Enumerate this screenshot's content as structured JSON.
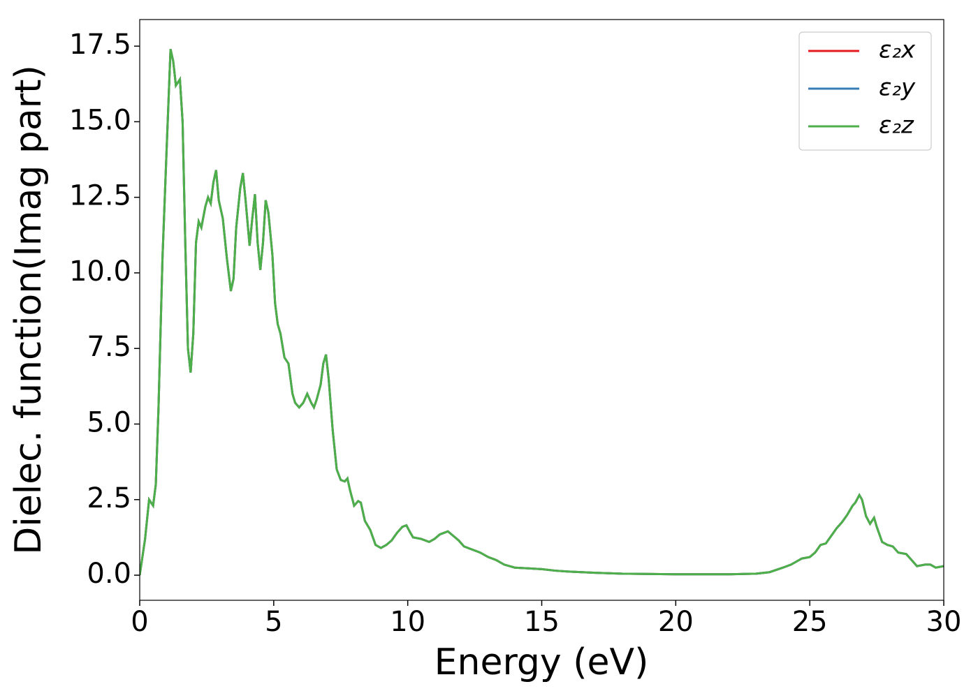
{
  "chart_data": {
    "type": "line",
    "xlabel": "Energy (eV)",
    "ylabel": "Dielec. function(Imag part)",
    "xlim": [
      0,
      30
    ],
    "ylim": [
      -0.83,
      18.38
    ],
    "xticks": [
      0,
      5,
      10,
      15,
      20,
      25,
      30
    ],
    "yticks": [
      {
        "value": 0,
        "label": "0.0"
      },
      2.5,
      {
        "value": 5,
        "label": "5.0"
      },
      7.5,
      {
        "value": 10,
        "label": "10.0"
      },
      12.5,
      {
        "value": 15,
        "label": "15.0"
      },
      17.5
    ],
    "legend": "upper right",
    "x": [
      0,
      0.2,
      0.35,
      0.5,
      0.6,
      0.7,
      0.85,
      1.0,
      1.15,
      1.25,
      1.35,
      1.5,
      1.6,
      1.7,
      1.8,
      1.9,
      2.0,
      2.1,
      2.2,
      2.3,
      2.45,
      2.55,
      2.65,
      2.75,
      2.85,
      2.95,
      3.1,
      3.25,
      3.4,
      3.5,
      3.6,
      3.75,
      3.85,
      3.95,
      4.1,
      4.2,
      4.3,
      4.4,
      4.5,
      4.6,
      4.7,
      4.8,
      4.95,
      5.05,
      5.15,
      5.25,
      5.4,
      5.55,
      5.7,
      5.8,
      5.95,
      6.1,
      6.25,
      6.4,
      6.5,
      6.6,
      6.75,
      6.85,
      6.95,
      7.05,
      7.2,
      7.35,
      7.5,
      7.65,
      7.75,
      7.85,
      8.0,
      8.15,
      8.25,
      8.4,
      8.6,
      8.8,
      9.0,
      9.2,
      9.4,
      9.6,
      9.8,
      9.95,
      10.1,
      10.2,
      10.5,
      10.8,
      11.0,
      11.2,
      11.5,
      11.7,
      11.9,
      12.1,
      12.4,
      12.7,
      13.0,
      13.3,
      13.6,
      14.0,
      15.0,
      15.5,
      16.0,
      17.0,
      18.0,
      20.0,
      22.0,
      23.0,
      23.5,
      24.0,
      24.3,
      24.7,
      25.0,
      25.2,
      25.4,
      25.6,
      25.8,
      26.0,
      26.2,
      26.4,
      26.6,
      26.7,
      26.85,
      26.95,
      27.1,
      27.25,
      27.4,
      27.5,
      27.7,
      27.9,
      28.1,
      28.3,
      28.6,
      28.8,
      29.0,
      29.3,
      29.5,
      29.7,
      30.0
    ],
    "series": [
      {
        "name": "ε₂x",
        "color": "#e41a1c",
        "values": [
          0,
          1.2,
          2.5,
          2.3,
          3.0,
          5.5,
          10.5,
          14.0,
          17.4,
          17.0,
          16.2,
          16.4,
          15.0,
          11.0,
          7.5,
          6.7,
          8.0,
          11.0,
          11.7,
          11.5,
          12.2,
          12.5,
          12.3,
          13.0,
          13.4,
          12.4,
          11.8,
          10.5,
          9.4,
          9.8,
          11.5,
          12.8,
          13.3,
          12.4,
          10.9,
          11.8,
          12.6,
          11.0,
          10.1,
          11.0,
          12.4,
          12.0,
          10.6,
          9.0,
          8.3,
          8.0,
          7.2,
          7.0,
          6.0,
          5.7,
          5.55,
          5.7,
          6.0,
          5.7,
          5.55,
          5.8,
          6.3,
          7.0,
          7.3,
          6.5,
          4.8,
          3.5,
          3.15,
          3.1,
          3.2,
          2.8,
          2.3,
          2.45,
          2.4,
          1.8,
          1.5,
          1.0,
          0.9,
          1.0,
          1.15,
          1.4,
          1.6,
          1.65,
          1.4,
          1.25,
          1.2,
          1.1,
          1.2,
          1.35,
          1.45,
          1.3,
          1.15,
          0.95,
          0.85,
          0.75,
          0.6,
          0.5,
          0.35,
          0.25,
          0.2,
          0.15,
          0.12,
          0.08,
          0.05,
          0.03,
          0.03,
          0.05,
          0.1,
          0.25,
          0.35,
          0.55,
          0.6,
          0.75,
          1.0,
          1.05,
          1.3,
          1.55,
          1.75,
          2.0,
          2.3,
          2.4,
          2.65,
          2.5,
          1.95,
          1.7,
          1.9,
          1.6,
          1.1,
          1.0,
          0.95,
          0.75,
          0.7,
          0.5,
          0.3,
          0.35,
          0.35,
          0.25,
          0.3
        ]
      },
      {
        "name": "ε₂y",
        "color": "#377eb8",
        "values": [
          0,
          1.2,
          2.5,
          2.3,
          3.0,
          5.5,
          10.5,
          14.0,
          17.4,
          17.0,
          16.2,
          16.4,
          15.0,
          11.0,
          7.5,
          6.7,
          8.0,
          11.0,
          11.7,
          11.5,
          12.2,
          12.5,
          12.3,
          13.0,
          13.4,
          12.4,
          11.8,
          10.5,
          9.4,
          9.8,
          11.5,
          12.8,
          13.3,
          12.4,
          10.9,
          11.8,
          12.6,
          11.0,
          10.1,
          11.0,
          12.4,
          12.0,
          10.6,
          9.0,
          8.3,
          8.0,
          7.2,
          7.0,
          6.0,
          5.7,
          5.55,
          5.7,
          6.0,
          5.7,
          5.55,
          5.8,
          6.3,
          7.0,
          7.3,
          6.5,
          4.8,
          3.5,
          3.15,
          3.1,
          3.2,
          2.8,
          2.3,
          2.45,
          2.4,
          1.8,
          1.5,
          1.0,
          0.9,
          1.0,
          1.15,
          1.4,
          1.6,
          1.65,
          1.4,
          1.25,
          1.2,
          1.1,
          1.2,
          1.35,
          1.45,
          1.3,
          1.15,
          0.95,
          0.85,
          0.75,
          0.6,
          0.5,
          0.35,
          0.25,
          0.2,
          0.15,
          0.12,
          0.08,
          0.05,
          0.03,
          0.03,
          0.05,
          0.1,
          0.25,
          0.35,
          0.55,
          0.6,
          0.75,
          1.0,
          1.05,
          1.3,
          1.55,
          1.75,
          2.0,
          2.3,
          2.4,
          2.65,
          2.5,
          1.95,
          1.7,
          1.9,
          1.6,
          1.1,
          1.0,
          0.95,
          0.75,
          0.7,
          0.5,
          0.3,
          0.35,
          0.35,
          0.25,
          0.3
        ]
      },
      {
        "name": "ε₂z",
        "color": "#4daf4a",
        "values": [
          0,
          1.2,
          2.5,
          2.3,
          3.0,
          5.5,
          10.5,
          14.0,
          17.4,
          17.0,
          16.2,
          16.4,
          15.0,
          11.0,
          7.5,
          6.7,
          8.0,
          11.0,
          11.7,
          11.5,
          12.2,
          12.5,
          12.3,
          13.0,
          13.4,
          12.4,
          11.8,
          10.5,
          9.4,
          9.8,
          11.5,
          12.8,
          13.3,
          12.4,
          10.9,
          11.8,
          12.6,
          11.0,
          10.1,
          11.0,
          12.4,
          12.0,
          10.6,
          9.0,
          8.3,
          8.0,
          7.2,
          7.0,
          6.0,
          5.7,
          5.55,
          5.7,
          6.0,
          5.7,
          5.55,
          5.8,
          6.3,
          7.0,
          7.3,
          6.5,
          4.8,
          3.5,
          3.15,
          3.1,
          3.2,
          2.8,
          2.3,
          2.45,
          2.4,
          1.8,
          1.5,
          1.0,
          0.9,
          1.0,
          1.15,
          1.4,
          1.6,
          1.65,
          1.4,
          1.25,
          1.2,
          1.1,
          1.2,
          1.35,
          1.45,
          1.3,
          1.15,
          0.95,
          0.85,
          0.75,
          0.6,
          0.5,
          0.35,
          0.25,
          0.2,
          0.15,
          0.12,
          0.08,
          0.05,
          0.03,
          0.03,
          0.05,
          0.1,
          0.25,
          0.35,
          0.55,
          0.6,
          0.75,
          1.0,
          1.05,
          1.3,
          1.55,
          1.75,
          2.0,
          2.3,
          2.4,
          2.65,
          2.5,
          1.95,
          1.7,
          1.9,
          1.6,
          1.1,
          1.0,
          0.95,
          0.75,
          0.7,
          0.5,
          0.3,
          0.35,
          0.35,
          0.25,
          0.3
        ]
      }
    ]
  }
}
